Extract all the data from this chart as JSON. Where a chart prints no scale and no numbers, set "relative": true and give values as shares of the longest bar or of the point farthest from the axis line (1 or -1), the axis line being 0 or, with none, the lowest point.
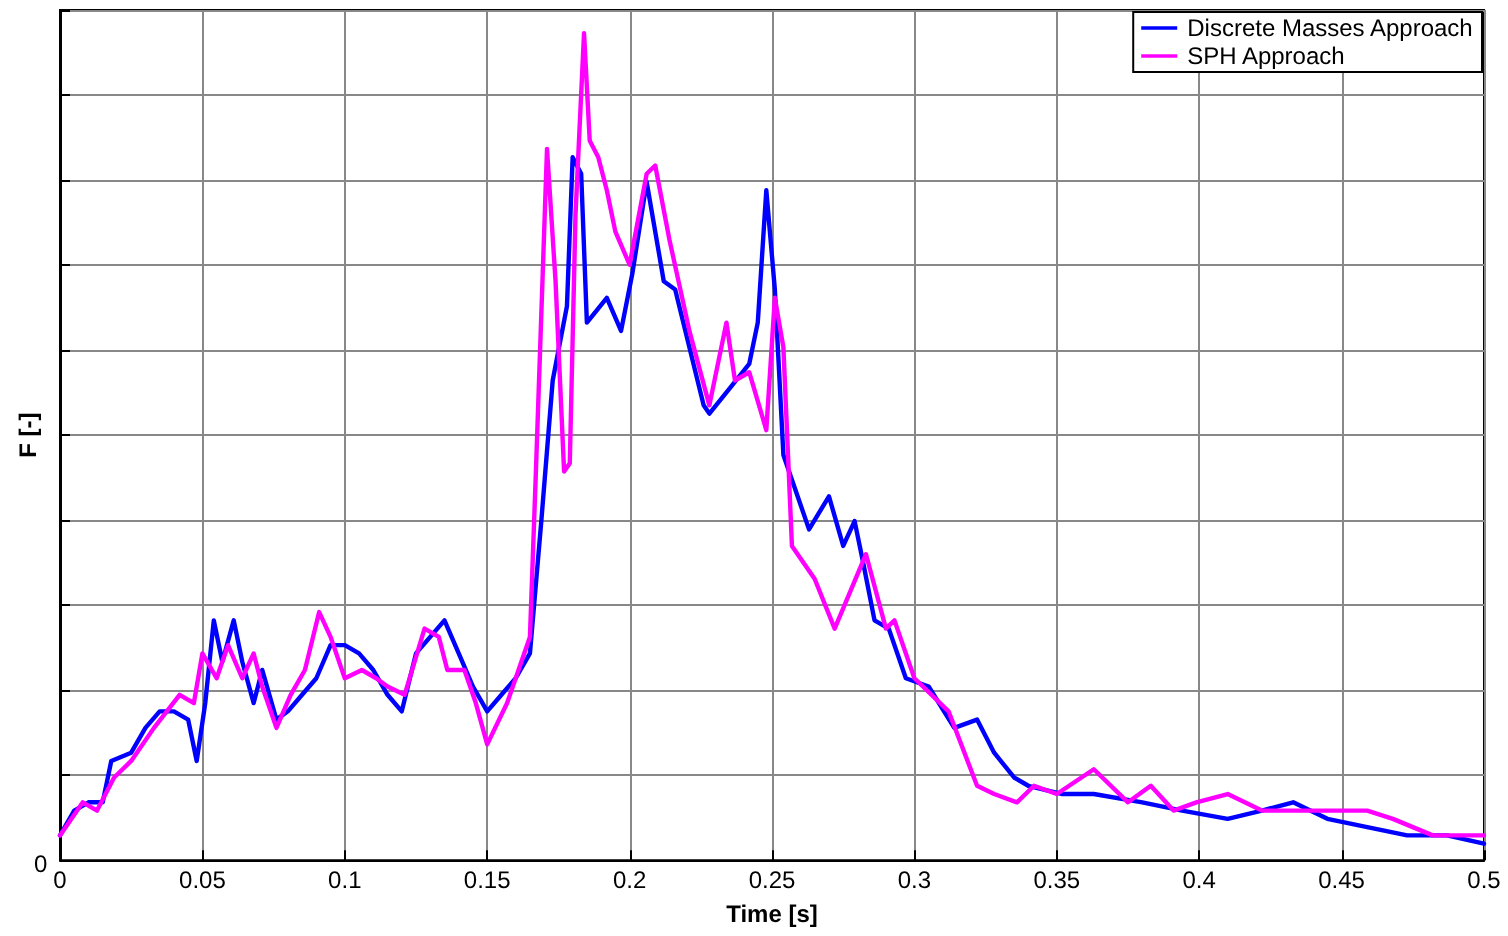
{
  "chart_data": {
    "type": "line",
    "xlabel": "Time [s]",
    "ylabel": "F [-]",
    "relative": true,
    "annotations": [
      "0"
    ],
    "xlim": [
      0,
      0.5
    ],
    "xticks": [
      0,
      0.05,
      0.1,
      0.15,
      0.2,
      0.25,
      0.3,
      0.35,
      0.4,
      0.45,
      0.5
    ],
    "grid": true,
    "legend": "top right",
    "marker": "none",
    "line_style": "solid",
    "series": [
      {
        "name": "Discrete Masses Approach",
        "color": "#0000ff",
        "x": [
          0,
          0.005,
          0.01,
          0.015,
          0.018,
          0.025,
          0.03,
          0.035,
          0.04,
          0.045,
          0.048,
          0.051,
          0.054,
          0.057,
          0.061,
          0.064,
          0.068,
          0.071,
          0.076,
          0.08,
          0.085,
          0.09,
          0.095,
          0.1,
          0.105,
          0.11,
          0.115,
          0.12,
          0.125,
          0.13,
          0.135,
          0.14,
          0.145,
          0.15,
          0.155,
          0.16,
          0.165,
          0.169,
          0.173,
          0.178,
          0.18,
          0.183,
          0.185,
          0.192,
          0.197,
          0.201,
          0.206,
          0.212,
          0.216,
          0.226,
          0.228,
          0.235,
          0.242,
          0.245,
          0.248,
          0.251,
          0.254,
          0.263,
          0.27,
          0.275,
          0.279,
          0.282,
          0.286,
          0.291,
          0.297,
          0.305,
          0.314,
          0.322,
          0.328,
          0.335,
          0.34,
          0.352,
          0.363,
          0.38,
          0.394,
          0.41,
          0.422,
          0.433,
          0.445,
          0.459,
          0.473,
          0.487,
          0.5
        ],
        "values": [
          0.03,
          0.06,
          0.07,
          0.07,
          0.12,
          0.13,
          0.16,
          0.18,
          0.18,
          0.17,
          0.12,
          0.19,
          0.29,
          0.24,
          0.29,
          0.24,
          0.19,
          0.23,
          0.17,
          0.18,
          0.2,
          0.22,
          0.26,
          0.26,
          0.25,
          0.23,
          0.2,
          0.18,
          0.25,
          0.27,
          0.29,
          0.25,
          0.21,
          0.18,
          0.2,
          0.22,
          0.25,
          0.41,
          0.58,
          0.67,
          0.85,
          0.83,
          0.65,
          0.68,
          0.64,
          0.71,
          0.82,
          0.7,
          0.69,
          0.55,
          0.54,
          0.57,
          0.6,
          0.65,
          0.81,
          0.69,
          0.49,
          0.4,
          0.44,
          0.38,
          0.41,
          0.36,
          0.29,
          0.28,
          0.22,
          0.21,
          0.16,
          0.17,
          0.13,
          0.1,
          0.09,
          0.08,
          0.08,
          0.07,
          0.06,
          0.05,
          0.06,
          0.07,
          0.05,
          0.04,
          0.03,
          0.03,
          0.02
        ]
      },
      {
        "name": "SPH Approach",
        "color": "#ff00ff",
        "x": [
          0,
          0.008,
          0.013,
          0.019,
          0.025,
          0.033,
          0.042,
          0.047,
          0.05,
          0.055,
          0.059,
          0.064,
          0.068,
          0.071,
          0.076,
          0.081,
          0.086,
          0.091,
          0.095,
          0.1,
          0.106,
          0.111,
          0.115,
          0.121,
          0.128,
          0.133,
          0.136,
          0.142,
          0.146,
          0.15,
          0.157,
          0.163,
          0.165,
          0.167,
          0.171,
          0.174,
          0.177,
          0.179,
          0.181,
          0.184,
          0.186,
          0.189,
          0.192,
          0.195,
          0.2,
          0.206,
          0.209,
          0.214,
          0.221,
          0.228,
          0.234,
          0.237,
          0.242,
          0.248,
          0.251,
          0.254,
          0.257,
          0.265,
          0.272,
          0.283,
          0.29,
          0.293,
          0.3,
          0.312,
          0.322,
          0.328,
          0.336,
          0.342,
          0.35,
          0.363,
          0.375,
          0.383,
          0.391,
          0.399,
          0.41,
          0.422,
          0.44,
          0.459,
          0.468,
          0.482,
          0.5
        ],
        "values": [
          0.03,
          0.07,
          0.06,
          0.1,
          0.12,
          0.16,
          0.2,
          0.19,
          0.25,
          0.22,
          0.26,
          0.22,
          0.25,
          0.21,
          0.16,
          0.2,
          0.23,
          0.3,
          0.27,
          0.22,
          0.23,
          0.22,
          0.21,
          0.2,
          0.28,
          0.27,
          0.23,
          0.23,
          0.19,
          0.14,
          0.19,
          0.25,
          0.27,
          0.46,
          0.86,
          0.7,
          0.47,
          0.48,
          0.78,
          1,
          0.87,
          0.85,
          0.81,
          0.76,
          0.72,
          0.83,
          0.84,
          0.75,
          0.64,
          0.55,
          0.65,
          0.58,
          0.59,
          0.52,
          0.68,
          0.62,
          0.38,
          0.34,
          0.28,
          0.37,
          0.28,
          0.29,
          0.22,
          0.18,
          0.09,
          0.08,
          0.07,
          0.09,
          0.08,
          0.11,
          0.07,
          0.09,
          0.06,
          0.07,
          0.08,
          0.06,
          0.06,
          0.06,
          0.05,
          0.03,
          0.03
        ]
      }
    ]
  }
}
